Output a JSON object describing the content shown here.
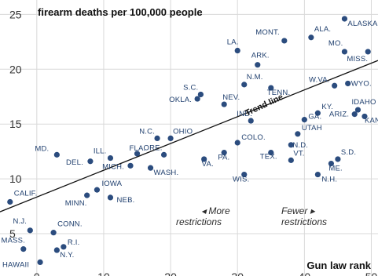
{
  "chart_data": {
    "type": "scatter",
    "title": "firearm deaths per 100,000 people",
    "xlabel": "Gun law rank",
    "ylabel": "",
    "xlim": [
      -5.5,
      51
    ],
    "ylim": [
      2,
      25.6
    ],
    "xticks": [
      "0",
      "10",
      "20",
      "30",
      "40",
      "50"
    ],
    "yticks": [
      "5",
      "10",
      "15",
      "20",
      "25"
    ],
    "grid": true,
    "point_color": "#2b4c7e",
    "trend_line": {
      "label": "Trend line",
      "x": [
        -5.5,
        51
      ],
      "y": [
        7.0,
        20.8
      ]
    },
    "annotations": {
      "more": [
        "◂ More",
        "restrictions"
      ],
      "fewer": [
        "Fewer ▸",
        "restrictions"
      ]
    },
    "points": [
      {
        "label": "HAWAII",
        "x": 0.5,
        "y": 2.4
      },
      {
        "label": "MASS.",
        "x": -2,
        "y": 3.6
      },
      {
        "label": "N.Y.",
        "x": 3,
        "y": 3.5
      },
      {
        "label": "R.I.",
        "x": 4,
        "y": 3.8
      },
      {
        "label": "N.J.",
        "x": -1,
        "y": 5.3
      },
      {
        "label": "CONN.",
        "x": 2.5,
        "y": 5.1
      },
      {
        "label": "CALIF.",
        "x": -4,
        "y": 7.9
      },
      {
        "label": "MINN.",
        "x": 7.5,
        "y": 8.5
      },
      {
        "label": "IOWA",
        "x": 9,
        "y": 9.0
      },
      {
        "label": "NEB.",
        "x": 11,
        "y": 8.3
      },
      {
        "label": "MD.",
        "x": 3,
        "y": 12.2
      },
      {
        "label": "DEL.",
        "x": 8,
        "y": 11.6
      },
      {
        "label": "ILL.",
        "x": 11,
        "y": 11.9
      },
      {
        "label": "MICH.",
        "x": 14,
        "y": 11.2
      },
      {
        "label": "FLA.",
        "x": 15,
        "y": 12.3
      },
      {
        "label": "N.C.",
        "x": 18,
        "y": 13.7
      },
      {
        "label": "OHIO",
        "x": 20,
        "y": 13.7
      },
      {
        "label": "ORE.",
        "x": 19,
        "y": 12.2
      },
      {
        "label": "WASH.",
        "x": 17,
        "y": 11.0
      },
      {
        "label": "VA.",
        "x": 25,
        "y": 11.8
      },
      {
        "label": "PA.",
        "x": 28,
        "y": 12.4
      },
      {
        "label": "COLO.",
        "x": 30,
        "y": 13.3
      },
      {
        "label": "WIS.",
        "x": 31,
        "y": 10.4
      },
      {
        "label": "TEX.",
        "x": 35,
        "y": 12.4
      },
      {
        "label": "N.D.",
        "x": 38,
        "y": 13.1
      },
      {
        "label": "UTAH",
        "x": 39,
        "y": 14.1
      },
      {
        "label": "VT.",
        "x": 38,
        "y": 11.7
      },
      {
        "label": "N.H.",
        "x": 42,
        "y": 10.4
      },
      {
        "label": "ME.",
        "x": 44,
        "y": 11.4
      },
      {
        "label": "S.D.",
        "x": 45,
        "y": 11.8
      },
      {
        "label": "GA.",
        "x": 40,
        "y": 15.4
      },
      {
        "label": "IND.",
        "x": 32,
        "y": 15.3
      },
      {
        "label": "KY.",
        "x": 42,
        "y": 16.0
      },
      {
        "label": "ARIZ.",
        "x": 47.5,
        "y": 15.9
      },
      {
        "label": "IDAHO",
        "x": 48,
        "y": 16.3
      },
      {
        "label": "KAN.",
        "x": 49,
        "y": 15.7
      },
      {
        "label": "OKLA.",
        "x": 24,
        "y": 17.3
      },
      {
        "label": "S.C.",
        "x": 24.5,
        "y": 17.7
      },
      {
        "label": "NEV.",
        "x": 28,
        "y": 16.8
      },
      {
        "label": "N.M.",
        "x": 31,
        "y": 18.6
      },
      {
        "label": "TENN.",
        "x": 35,
        "y": 18.3
      },
      {
        "label": "W.VA.",
        "x": 44.5,
        "y": 18.5
      },
      {
        "label": "WYO.",
        "x": 46.5,
        "y": 18.7
      },
      {
        "label": "LA.",
        "x": 30,
        "y": 21.7
      },
      {
        "label": "ARK.",
        "x": 33,
        "y": 20.4
      },
      {
        "label": "MONT.",
        "x": 37,
        "y": 22.6
      },
      {
        "label": "ALA.",
        "x": 41,
        "y": 22.9
      },
      {
        "label": "MO.",
        "x": 46,
        "y": 21.6
      },
      {
        "label": "MISS.",
        "x": 49.5,
        "y": 21.6
      },
      {
        "label": "ALASKA",
        "x": 46,
        "y": 24.6
      }
    ]
  }
}
